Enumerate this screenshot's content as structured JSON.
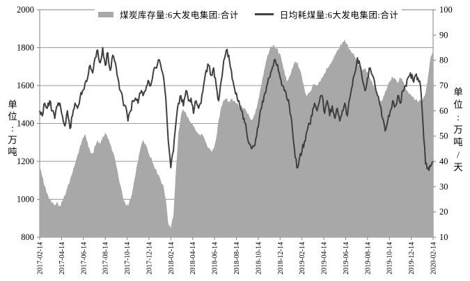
{
  "chart_data": {
    "type": "area",
    "title": "",
    "legend": {
      "position": "top"
    },
    "x": {
      "start_date": "2017-02-14",
      "interval_days": 7,
      "count": 157,
      "tick_labels": [
        "2017-02-14",
        "2017-04-14",
        "2017-06-14",
        "2017-08-14",
        "2017-10-14",
        "2017-12-14",
        "2018-02-14",
        "2018-04-14",
        "2018-06-14",
        "2018-08-14",
        "2018-10-14",
        "2018-12-14",
        "2019-02-14",
        "2019-04-14",
        "2019-06-14",
        "2019-08-14",
        "2019-10-14",
        "2019-12-14",
        "2020-02-14"
      ]
    },
    "axes": {
      "left": {
        "title": "单位:万吨",
        "min": 800,
        "max": 2000,
        "step": 200,
        "tick_labels": [
          "800",
          "1000",
          "1200",
          "1400",
          "1600",
          "1800",
          "2000"
        ]
      },
      "right": {
        "title": "单位:万吨/天",
        "min": 10,
        "max": 100,
        "step": 10,
        "tick_labels": [
          "10",
          "20",
          "30",
          "40",
          "50",
          "60",
          "70",
          "80",
          "90",
          "100"
        ]
      }
    },
    "grid": {
      "horizontal": true,
      "color": "#999999",
      "axis_color": "#808080",
      "text_color": "#000000"
    },
    "series": [
      {
        "name": "煤炭库存量:6大发电集团:合计",
        "type": "area",
        "axis": "left",
        "color": "#a8a8a8",
        "values": [
          1165,
          1120,
          1070,
          1030,
          1000,
          985,
          970,
          985,
          965,
          990,
          1020,
          1060,
          1100,
          1140,
          1185,
          1235,
          1280,
          1320,
          1345,
          1300,
          1255,
          1240,
          1285,
          1310,
          1290,
          1330,
          1355,
          1320,
          1290,
          1250,
          1205,
          1140,
          1075,
          1010,
          975,
          965,
          1000,
          1060,
          1130,
          1200,
          1270,
          1315,
          1290,
          1250,
          1220,
          1190,
          1160,
          1130,
          1100,
          1075,
          1000,
          870,
          845,
          910,
          1150,
          1350,
          1440,
          1475,
          1455,
          1430,
          1400,
          1385,
          1360,
          1340,
          1345,
          1330,
          1300,
          1270,
          1255,
          1265,
          1320,
          1420,
          1490,
          1520,
          1535,
          1515,
          1530,
          1520,
          1505,
          1490,
          1500,
          1480,
          1465,
          1440,
          1420,
          1445,
          1480,
          1540,
          1610,
          1680,
          1740,
          1780,
          1805,
          1810,
          1795,
          1770,
          1730,
          1680,
          1620,
          1650,
          1690,
          1720,
          1725,
          1690,
          1640,
          1580,
          1545,
          1560,
          1590,
          1610,
          1600,
          1620,
          1640,
          1665,
          1690,
          1710,
          1730,
          1760,
          1785,
          1805,
          1825,
          1845,
          1820,
          1790,
          1770,
          1750,
          1720,
          1700,
          1680,
          1695,
          1670,
          1640,
          1610,
          1580,
          1545,
          1510,
          1530,
          1570,
          1600,
          1625,
          1645,
          1635,
          1615,
          1640,
          1620,
          1590,
          1570,
          1555,
          1540,
          1525,
          1515,
          1520,
          1530,
          1560,
          1650,
          1750,
          1780
        ]
      },
      {
        "name": "日均耗煤量:6大发电集团:合计",
        "type": "line",
        "axis": "right",
        "color": "#3f3f3f",
        "values": [
          60,
          58,
          63,
          61,
          64,
          60,
          57,
          62,
          63,
          58,
          54,
          60,
          53,
          58,
          63,
          61,
          65,
          68,
          71,
          73,
          78,
          75,
          81,
          84,
          79,
          85,
          78,
          83,
          76,
          82,
          79,
          73,
          68,
          64,
          62,
          56,
          60,
          64,
          65,
          63,
          67,
          66,
          68,
          72,
          70,
          75,
          77,
          80,
          78,
          74,
          65,
          48,
          37.5,
          44,
          55,
          63,
          66,
          62,
          68,
          64,
          65,
          59,
          64,
          61,
          63,
          70,
          76,
          78,
          74,
          77,
          70,
          64,
          72,
          80,
          84,
          82,
          76,
          70,
          67,
          64,
          60,
          57,
          52,
          47,
          45,
          46,
          50,
          56,
          61,
          66,
          70,
          73,
          76,
          80,
          78,
          75,
          70,
          68,
          65,
          62,
          55,
          45,
          37.5,
          41,
          44,
          48,
          52,
          55,
          58,
          63,
          60,
          64,
          66,
          59,
          64,
          58,
          62,
          57,
          61,
          56,
          60,
          63,
          58,
          65,
          70,
          75,
          81,
          78,
          72,
          68,
          73,
          77,
          74,
          70,
          66,
          62,
          57,
          52,
          56,
          60,
          64,
          62,
          66,
          63,
          68,
          70,
          73,
          75,
          72,
          74,
          73,
          70,
          55,
          39,
          37.5,
          38,
          40
        ]
      }
    ]
  }
}
